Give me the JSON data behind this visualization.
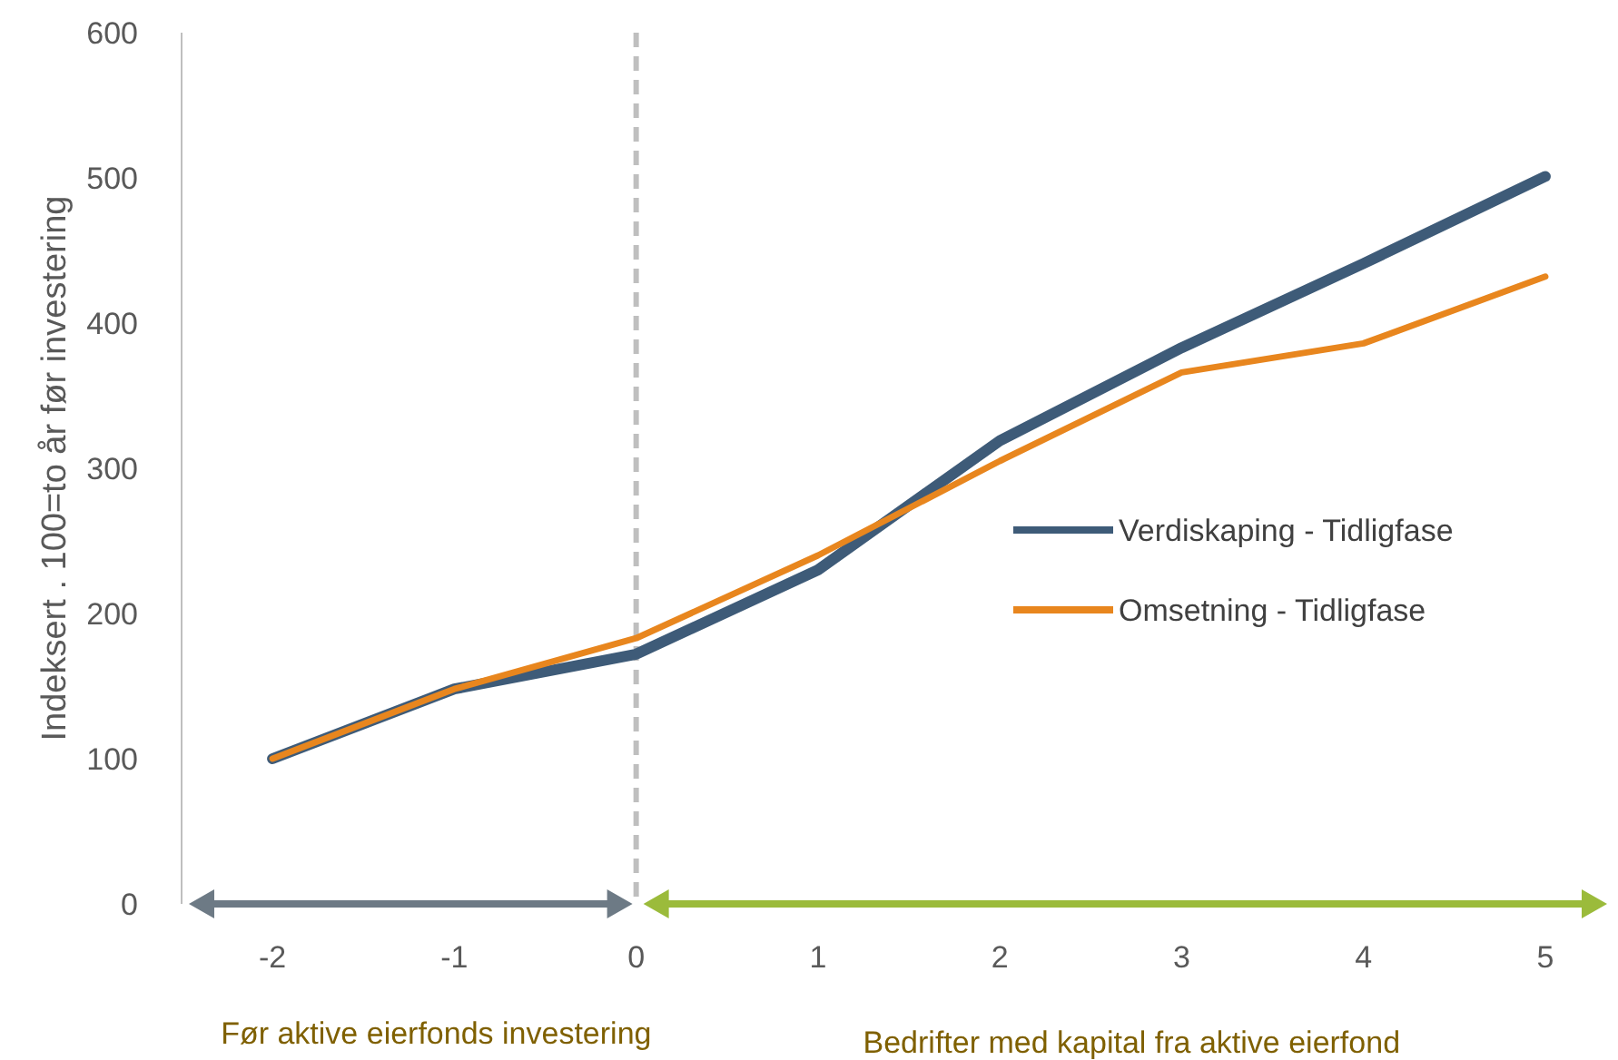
{
  "chart_data": {
    "type": "line",
    "ylabel": "Indeksert . 100=to år før investering",
    "x": [
      -2,
      -1,
      0,
      1,
      2,
      3,
      4,
      5
    ],
    "series": [
      {
        "name": "Verdiskaping - Tidligfase",
        "color": "#3e5b78",
        "values": [
          100,
          148,
          172,
          230,
          319,
          383,
          441,
          501
        ]
      },
      {
        "name": "Omsetning - Tidligfase",
        "color": "#e8861e",
        "values": [
          100,
          148,
          183,
          240,
          305,
          366,
          386,
          432
        ]
      }
    ],
    "xlim": [
      -2.5,
      5.35
    ],
    "xticks": [
      -2,
      -1,
      0,
      1,
      2,
      3,
      4,
      5
    ],
    "ylim": [
      0,
      600
    ],
    "yticks": [
      0,
      100,
      200,
      300,
      400,
      500,
      600
    ],
    "grid": false,
    "legend": "right",
    "marker": "none",
    "line_style": "solid",
    "ref_lines": [
      {
        "axis": "x",
        "value": 0,
        "color": "#bfbfbf",
        "line_style": "dashed"
      }
    ],
    "annotations": [
      "Før aktive eierfonds investering",
      "Bedrifter med kapital fra aktive eierfond"
    ]
  }
}
